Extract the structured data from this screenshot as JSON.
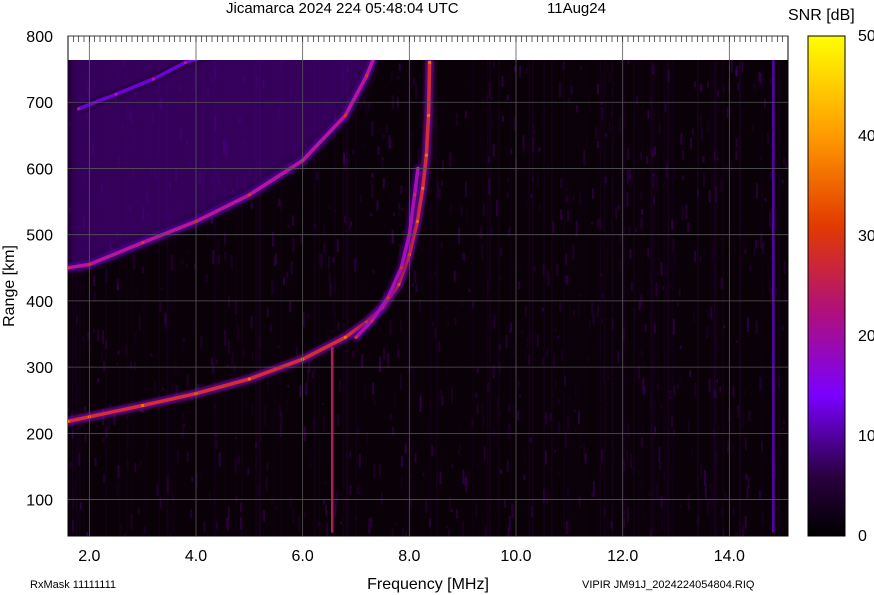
{
  "chart_data": {
    "type": "heatmap",
    "title": "Jicamarca 2024 224 05:48:04 UTC",
    "date_label": "11Aug24",
    "xlabel": "Frequency [MHz]",
    "ylabel": "Range [km]",
    "xlim": [
      1.6,
      15.1
    ],
    "ylim": [
      45,
      800
    ],
    "x_ticks": [
      "2.0",
      "4.0",
      "6.0",
      "8.0",
      "10.0",
      "12.0",
      "14.0"
    ],
    "x_tick_values": [
      2,
      4,
      6,
      8,
      10,
      12,
      14
    ],
    "y_ticks": [
      "100",
      "200",
      "300",
      "400",
      "500",
      "600",
      "700",
      "800"
    ],
    "y_tick_values": [
      100,
      200,
      300,
      400,
      500,
      600,
      700,
      800
    ],
    "grid": true,
    "colorbar": {
      "label": "SNR [dB]",
      "min": 0,
      "max": 50,
      "ticks": [
        "0",
        "10",
        "20",
        "30",
        "40",
        "50"
      ],
      "tick_values": [
        0,
        10,
        20,
        30,
        40,
        50
      ],
      "colors": [
        "#000000",
        "#3a0050",
        "#7a00ff",
        "#c2188a",
        "#e23a00",
        "#ff9a00",
        "#ffff00"
      ]
    },
    "traces": [
      {
        "name": "o-trace first hop",
        "points": [
          [
            1.6,
            218
          ],
          [
            2.0,
            225
          ],
          [
            3.0,
            242
          ],
          [
            4.0,
            260
          ],
          [
            5.0,
            282
          ],
          [
            6.0,
            312
          ],
          [
            6.8,
            345
          ],
          [
            7.2,
            368
          ],
          [
            7.5,
            390
          ],
          [
            7.8,
            425
          ],
          [
            8.0,
            470
          ],
          [
            8.15,
            520
          ],
          [
            8.25,
            570
          ],
          [
            8.32,
            620
          ],
          [
            8.36,
            680
          ],
          [
            8.38,
            760
          ]
        ],
        "snr": 30
      },
      {
        "name": "x-trace first hop",
        "points": [
          [
            7.0,
            345
          ],
          [
            7.3,
            370
          ],
          [
            7.6,
            405
          ],
          [
            7.85,
            450
          ],
          [
            8.0,
            500
          ],
          [
            8.1,
            560
          ],
          [
            8.16,
            600
          ]
        ],
        "snr": 22
      },
      {
        "name": "second hop",
        "points": [
          [
            1.6,
            450
          ],
          [
            2.0,
            455
          ],
          [
            3.0,
            488
          ],
          [
            4.0,
            520
          ],
          [
            5.0,
            560
          ],
          [
            6.0,
            612
          ],
          [
            6.8,
            680
          ],
          [
            7.2,
            740
          ],
          [
            7.35,
            770
          ]
        ],
        "snr": 24
      },
      {
        "name": "third hop",
        "points": [
          [
            1.8,
            690
          ],
          [
            2.5,
            712
          ],
          [
            3.2,
            735
          ],
          [
            3.8,
            760
          ],
          [
            4.2,
            770
          ]
        ],
        "snr": 15
      }
    ],
    "vertical_streaks": [
      {
        "x": 6.55,
        "range": [
          50,
          330
        ],
        "snr": 28
      },
      {
        "x": 14.82,
        "range": [
          50,
          770
        ],
        "snr": 14
      }
    ]
  },
  "footer": {
    "rx_mask": "RxMask 11111111",
    "file_id": "VIPIR  JM91J_2024224054804.RIQ"
  }
}
